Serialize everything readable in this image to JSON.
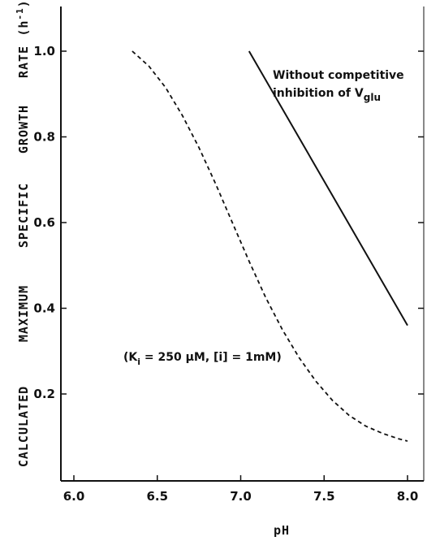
{
  "chart_data": {
    "type": "line",
    "xlabel": "pH",
    "ylabel_words": [
      "CALCULATED",
      "MAXIMUM",
      "SPECIFIC",
      "GROWTH",
      "RATE"
    ],
    "ylabel_unit_main": "(h",
    "ylabel_unit_exp": "-1",
    "ylabel_unit_close": ")",
    "xlim": [
      6.0,
      8.0
    ],
    "ylim": [
      0.0,
      1.1
    ],
    "x_ticks": [
      "6.0",
      "6.5",
      "7.0",
      "7.5",
      "8.0"
    ],
    "y_ticks": [
      "0.2",
      "0.4",
      "0.6",
      "0.8",
      "1.0"
    ],
    "grid": false,
    "series": [
      {
        "style": "solid",
        "x": [
          7.05,
          8.0
        ],
        "y": [
          1.0,
          0.36
        ]
      },
      {
        "style": "dashed",
        "x": [
          6.35,
          6.45,
          6.55,
          6.65,
          6.75,
          6.85,
          6.95,
          7.05,
          7.15,
          7.25,
          7.35,
          7.45,
          7.55,
          7.65,
          7.75,
          7.85,
          7.95,
          8.0
        ],
        "y": [
          1.0,
          0.965,
          0.915,
          0.85,
          0.775,
          0.69,
          0.6,
          0.51,
          0.425,
          0.35,
          0.285,
          0.23,
          0.185,
          0.15,
          0.125,
          0.108,
          0.095,
          0.09
        ]
      }
    ],
    "annotations": {
      "solid_line_1": "Without competitive",
      "solid_line_2_prefix": "inhibition of V",
      "solid_line_2_sub": "glu",
      "dashed_prefix": "(K",
      "dashed_sub": "i",
      "dashed_rest": " = 250 μM,  [i] = 1mM)"
    }
  }
}
